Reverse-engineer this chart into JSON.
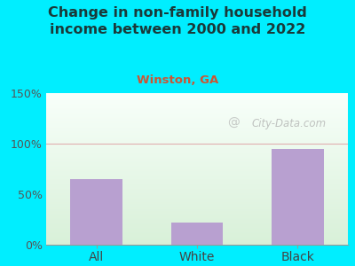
{
  "title": "Change in non-family household\nincome between 2000 and 2022",
  "subtitle": "Winston, GA",
  "categories": [
    "All",
    "White",
    "Black"
  ],
  "values": [
    65,
    22,
    95
  ],
  "bar_color": "#b8a0d0",
  "title_color": "#1a3a3a",
  "subtitle_color": "#cc5533",
  "background_outer": "#00eeff",
  "ylim": [
    0,
    150
  ],
  "yticks": [
    0,
    50,
    100,
    150
  ],
  "ytick_labels": [
    "0%",
    "50%",
    "100%",
    "150%"
  ],
  "watermark": "City-Data.com",
  "grid_line_color": "#e0b0b0",
  "plot_bg_bottom": "#d8f0d8",
  "plot_bg_top": "#f8fffa"
}
